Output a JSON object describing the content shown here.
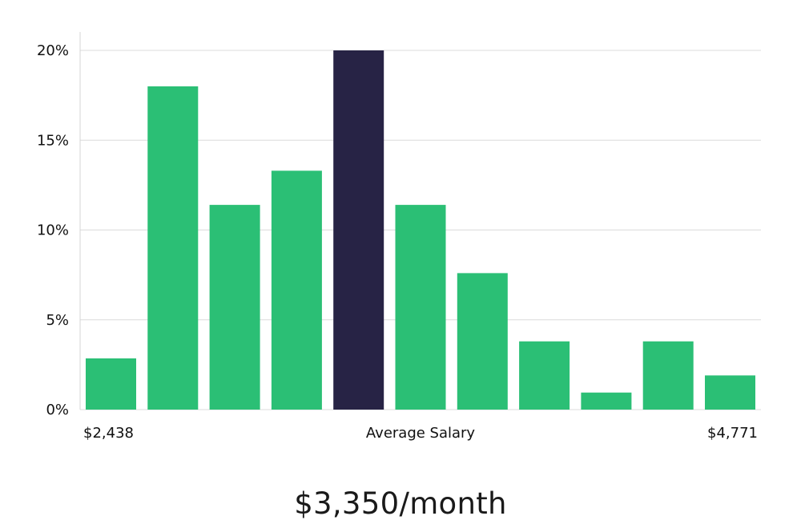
{
  "chart_data": {
    "type": "bar",
    "categories": [
      "1",
      "2",
      "3",
      "4",
      "5",
      "6",
      "7",
      "8",
      "9",
      "10",
      "11"
    ],
    "values": [
      2.85,
      18.0,
      11.4,
      13.3,
      20.0,
      11.4,
      7.6,
      3.8,
      0.95,
      3.8,
      1.9
    ],
    "highlight_index": 4,
    "ylim": [
      0,
      21
    ],
    "yticks": [
      0,
      5,
      10,
      15,
      20
    ],
    "ytick_suffix": "%",
    "grid": true,
    "xlabels": {
      "min": "$2,438",
      "center": "Average Salary",
      "max": "$4,771"
    },
    "colors": {
      "bar": "#2bbf75",
      "highlight": "#272345",
      "grid": "#dcdcdc",
      "axis": "#d4d4d4"
    }
  },
  "caption": "$3,350/month"
}
